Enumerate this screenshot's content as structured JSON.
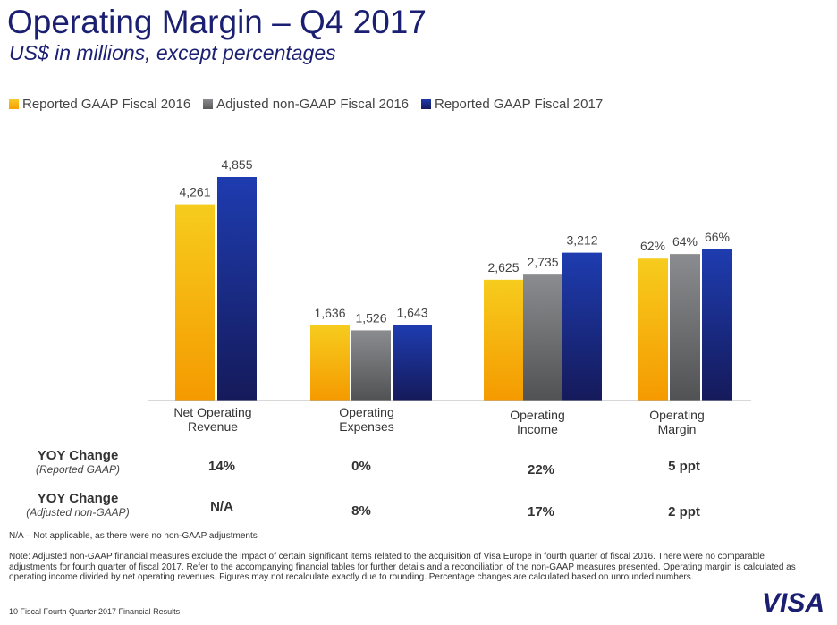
{
  "title": "Operating Margin – Q4 2017",
  "subtitle": "US$ in millions, except percentages",
  "colors": {
    "brand": "#1a1f71",
    "gold": "#f5a800",
    "gray": "#6d6e71",
    "navy": "#1a1f71"
  },
  "chart_data": {
    "type": "bar",
    "legend_position": "top-left",
    "grid": false,
    "categories": [
      "Net Operating Revenue",
      "Operating Expenses",
      "Operating Income",
      "Operating Margin"
    ],
    "category_labels": [
      [
        "Net Operating",
        "Revenue"
      ],
      [
        "Operating",
        "Expenses"
      ],
      [
        "Operating",
        "Income"
      ],
      [
        "Operating",
        "Margin"
      ]
    ],
    "series": [
      {
        "name": "Reported GAAP Fiscal 2016",
        "values": [
          4261,
          1636,
          2625,
          62
        ],
        "labels": [
          "4,261",
          "1,636",
          "2,625",
          "62%"
        ]
      },
      {
        "name": "Adjusted non-GAAP Fiscal 2016",
        "values": [
          null,
          1526,
          2735,
          64
        ],
        "labels": [
          "",
          "1,526",
          "2,735",
          "64%"
        ]
      },
      {
        "name": "Reported GAAP Fiscal 2017",
        "values": [
          4855,
          1643,
          3212,
          66
        ],
        "labels": [
          "4,855",
          "1,643",
          "3,212",
          "66%"
        ]
      }
    ]
  },
  "yoy": {
    "reported": {
      "heading": "YOY Change",
      "sub": "(Reported GAAP)",
      "values": [
        "14%",
        "0%",
        "22%",
        "5 ppt"
      ]
    },
    "adjusted": {
      "heading": "YOY Change",
      "sub": "(Adjusted non-GAAP)",
      "values": [
        "N/A",
        "8%",
        "17%",
        "2 ppt"
      ]
    }
  },
  "na_note": "N/A – Not applicable, as there were no non-GAAP adjustments",
  "note": "Note: Adjusted non-GAAP financial measures exclude the impact of certain significant items related to the acquisition of Visa Europe in fourth quarter of fiscal 2016. There were no comparable adjustments for fourth quarter of fiscal 2017. Refer to the accompanying financial tables for further details and a reconciliation of the non-GAAP measures presented. Operating margin is calculated as operating income divided by net operating revenues. Figures may not recalculate exactly due to rounding. Percentage changes are calculated based on unrounded numbers.",
  "footer": "10  Fiscal Fourth Quarter 2017 Financial Results",
  "logo": "VISA"
}
